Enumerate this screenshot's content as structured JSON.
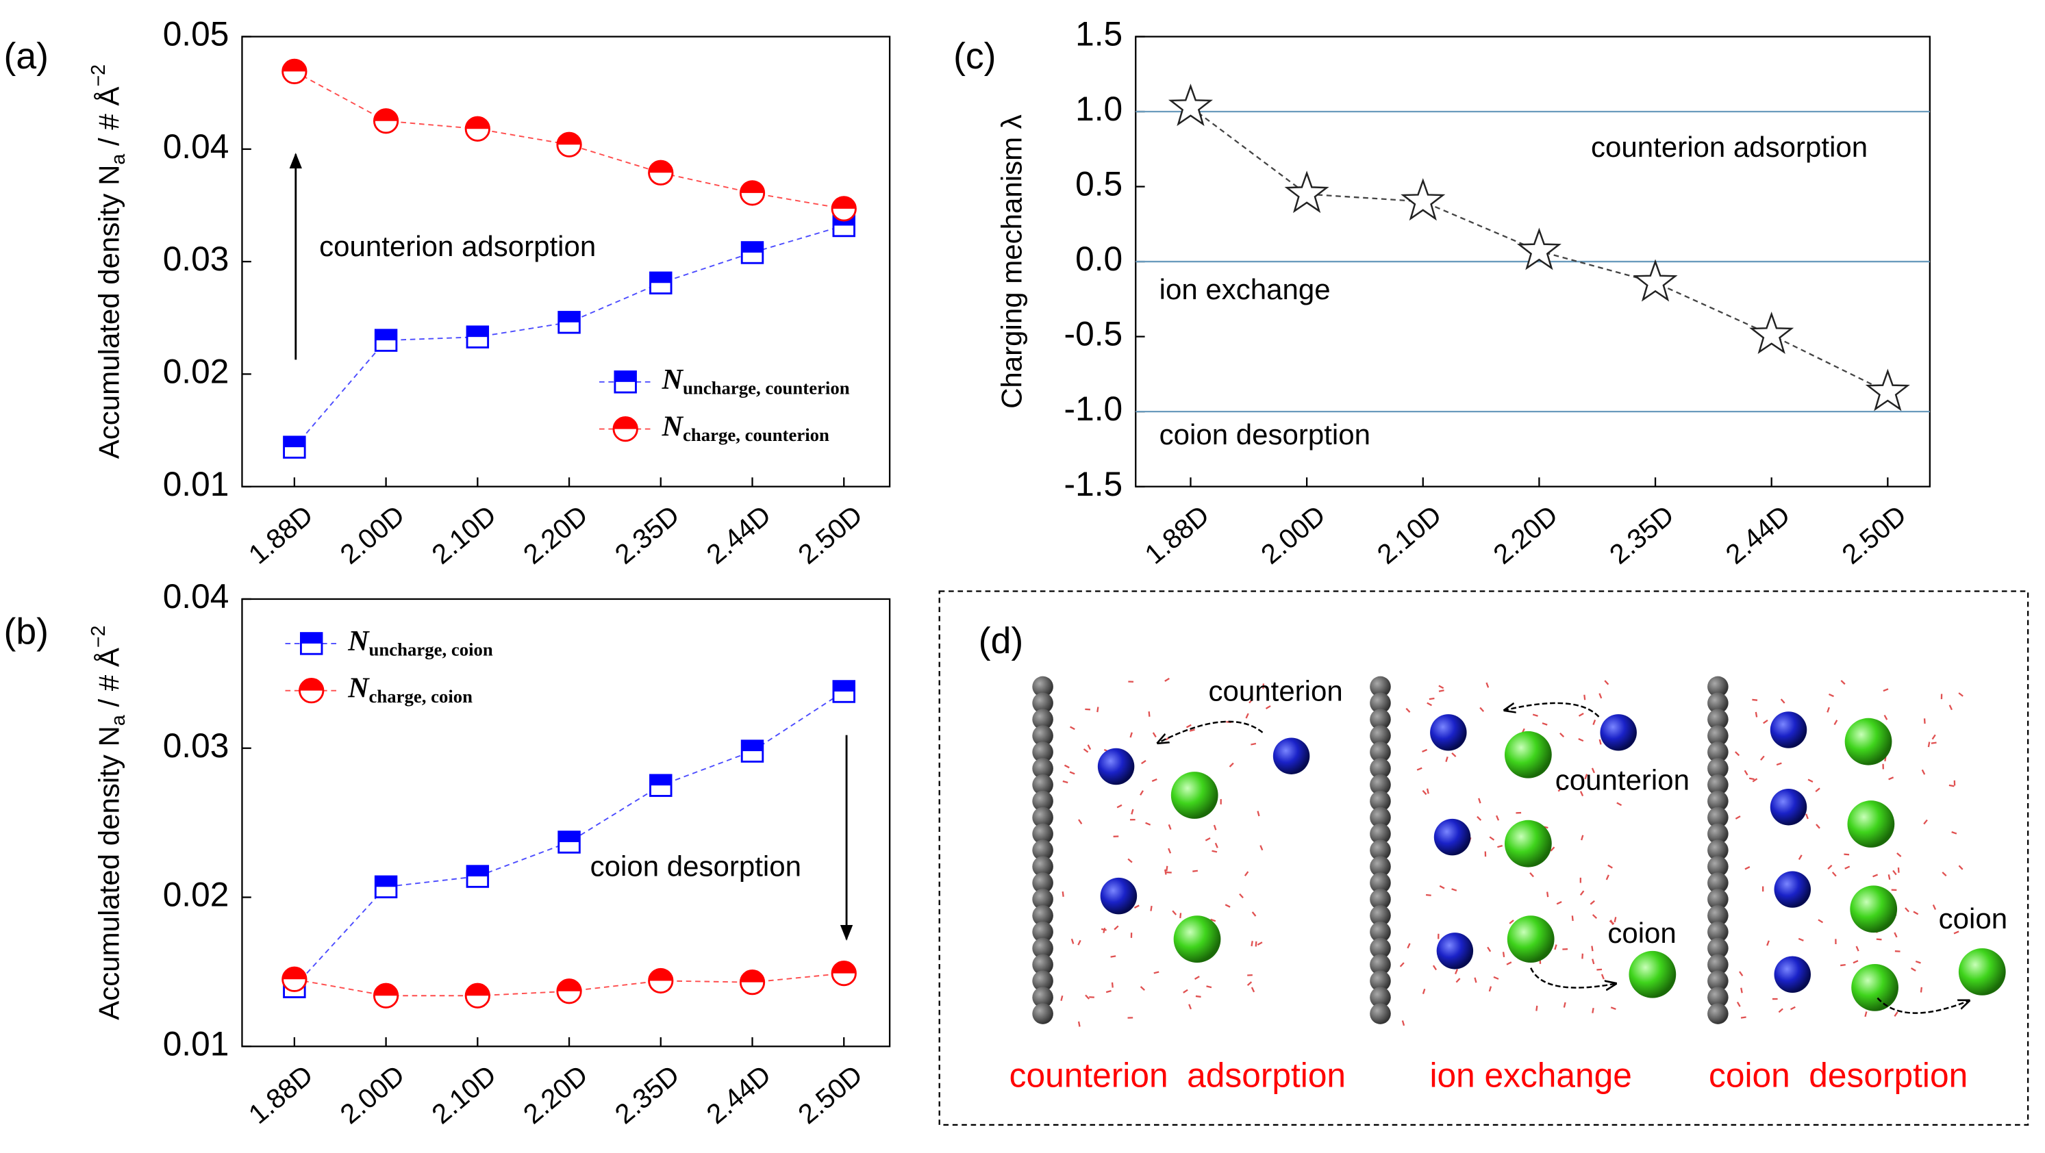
{
  "chart_data": [
    {
      "type": "line",
      "panel": "(a)",
      "ylabel": "Accumulated density N",
      "ylabel_sub": "a",
      "ylabel_rest": " / # Å",
      "ylabel_sup": "−2",
      "categories": [
        "1.88D",
        "2.00D",
        "2.10D",
        "2.20D",
        "2.35D",
        "2.44D",
        "2.50D"
      ],
      "ylim": [
        0.01,
        0.05
      ],
      "yticks": [
        0.01,
        0.02,
        0.03,
        0.04,
        0.05
      ],
      "legend": "lower right",
      "series": [
        {
          "name": "N",
          "subscript": "uncharge, counterion",
          "color": "#0000ff",
          "marker": "square",
          "values": [
            0.0135,
            0.023,
            0.0233,
            0.0246,
            0.0281,
            0.0308,
            0.0332
          ]
        },
        {
          "name": "N",
          "subscript": "charge, counterion",
          "color": "#ff0000",
          "marker": "circle",
          "values": [
            0.0469,
            0.0425,
            0.0418,
            0.0404,
            0.0379,
            0.0361,
            0.0347
          ]
        }
      ],
      "annotation": "counterion adsorption"
    },
    {
      "type": "line",
      "panel": "(b)",
      "ylabel": "Accumulated density N",
      "ylabel_sub": "a",
      "ylabel_rest": " / # Å",
      "ylabel_sup": "−2",
      "categories": [
        "1.88D",
        "2.00D",
        "2.10D",
        "2.20D",
        "2.35D",
        "2.44D",
        "2.50D"
      ],
      "ylim": [
        0.01,
        0.04
      ],
      "yticks": [
        0.01,
        0.02,
        0.03,
        0.04
      ],
      "legend": "upper left",
      "series": [
        {
          "name": "N",
          "subscript": "uncharge, coion",
          "color": "#0000ff",
          "marker": "square",
          "values": [
            0.014,
            0.0207,
            0.0214,
            0.0237,
            0.0275,
            0.0298,
            0.0338
          ]
        },
        {
          "name": "N",
          "subscript": "charge, coion",
          "color": "#ff0000",
          "marker": "circle",
          "values": [
            0.0145,
            0.0134,
            0.0134,
            0.0137,
            0.0144,
            0.0143,
            0.0149
          ]
        }
      ],
      "annotation": "coion desorption"
    },
    {
      "type": "star",
      "panel": "(c)",
      "ylabel": "Charging mechanism λ",
      "categories": [
        "1.88D",
        "2.00D",
        "2.10D",
        "2.20D",
        "2.35D",
        "2.44D",
        "2.50D"
      ],
      "ylim": [
        -1.5,
        1.5
      ],
      "yticks": [
        -1.5,
        {
          "value": -1,
          "label": "-1.0"
        },
        -0.5,
        {
          "value": 0,
          "label": "0.0"
        },
        0.5,
        {
          "value": 1,
          "label": "1.0"
        },
        1.5
      ],
      "hlines": [
        1,
        0,
        -1
      ],
      "color": "#444444",
      "values": [
        1.03,
        0.45,
        0.4,
        0.07,
        -0.14,
        -0.49,
        -0.87
      ],
      "annotations": [
        "counterion adsorption",
        "ion exchange",
        "coion desorption"
      ]
    }
  ],
  "diagram": {
    "panel": "(d)",
    "texts": [
      "counterion",
      "counterion",
      "coion",
      "coion"
    ],
    "captions": [
      "counterion  adsorption",
      "ion exchange",
      "coion  desorption"
    ]
  }
}
